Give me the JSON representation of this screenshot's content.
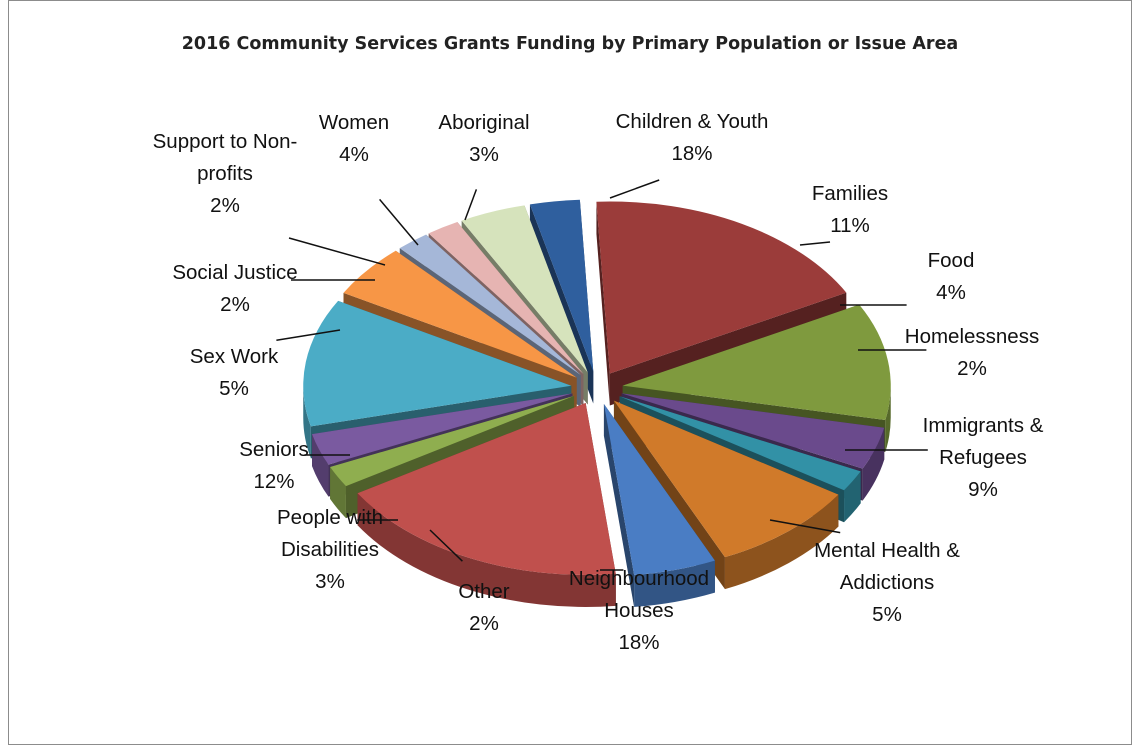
{
  "chart_data": {
    "type": "pie",
    "title": "2016 Community Services Grants Funding by Primary Population or Issue Area",
    "slices": [
      {
        "label": "Children & Youth",
        "lines": [
          "Children & Youth"
        ],
        "percent_label": "18%",
        "value": 18,
        "color": "#9b3c3a"
      },
      {
        "label": "Families",
        "lines": [
          "Families"
        ],
        "percent_label": "11%",
        "value": 11,
        "color": "#7f9a3e"
      },
      {
        "label": "Food",
        "lines": [
          "Food"
        ],
        "percent_label": "4%",
        "value": 4,
        "color": "#6a4a8c"
      },
      {
        "label": "Homelessness",
        "lines": [
          "Homelessness"
        ],
        "percent_label": "2%",
        "value": 2,
        "color": "#3291a6"
      },
      {
        "label": "Immigrants & Refugees",
        "lines": [
          "Immigrants &",
          "Refugees"
        ],
        "percent_label": "9%",
        "value": 9,
        "color": "#d07a2a"
      },
      {
        "label": "Mental Health & Addictions",
        "lines": [
          "Mental Health &",
          "Addictions"
        ],
        "percent_label": "5%",
        "value": 5,
        "color": "#4a7dc4"
      },
      {
        "label": "Neighbourhood Houses",
        "lines": [
          "Neighbourhood",
          "Houses"
        ],
        "percent_label": "18%",
        "value": 18,
        "color": "#c0504d"
      },
      {
        "label": "Other",
        "lines": [
          "Other"
        ],
        "percent_label": "2%",
        "value": 2,
        "color": "#8fae4f"
      },
      {
        "label": "People with Disabilities",
        "lines": [
          "People with",
          "Disabilities"
        ],
        "percent_label": "3%",
        "value": 3,
        "color": "#7a5aa0"
      },
      {
        "label": "Seniors",
        "lines": [
          "Seniors"
        ],
        "percent_label": "12%",
        "value": 12,
        "color": "#4bacc6"
      },
      {
        "label": "Sex Work",
        "lines": [
          "Sex Work"
        ],
        "percent_label": "5%",
        "value": 5,
        "color": "#f79646"
      },
      {
        "label": "Social Justice",
        "lines": [
          "Social Justice"
        ],
        "percent_label": "2%",
        "value": 2,
        "color": "#a5b7d8"
      },
      {
        "label": "Support to Non-profits",
        "lines": [
          "Support to Non-",
          "profits"
        ],
        "percent_label": "2%",
        "value": 2,
        "color": "#e6b4b2"
      },
      {
        "label": "Women",
        "lines": [
          "Women"
        ],
        "percent_label": "4%",
        "value": 4,
        "color": "#d6e3bc"
      },
      {
        "label": "Aboriginal",
        "lines": [
          "Aboriginal"
        ],
        "percent_label": "3%",
        "value": 3,
        "color": "#2f5f9e"
      }
    ],
    "legend": "none",
    "style": "exploded 3D pie"
  }
}
